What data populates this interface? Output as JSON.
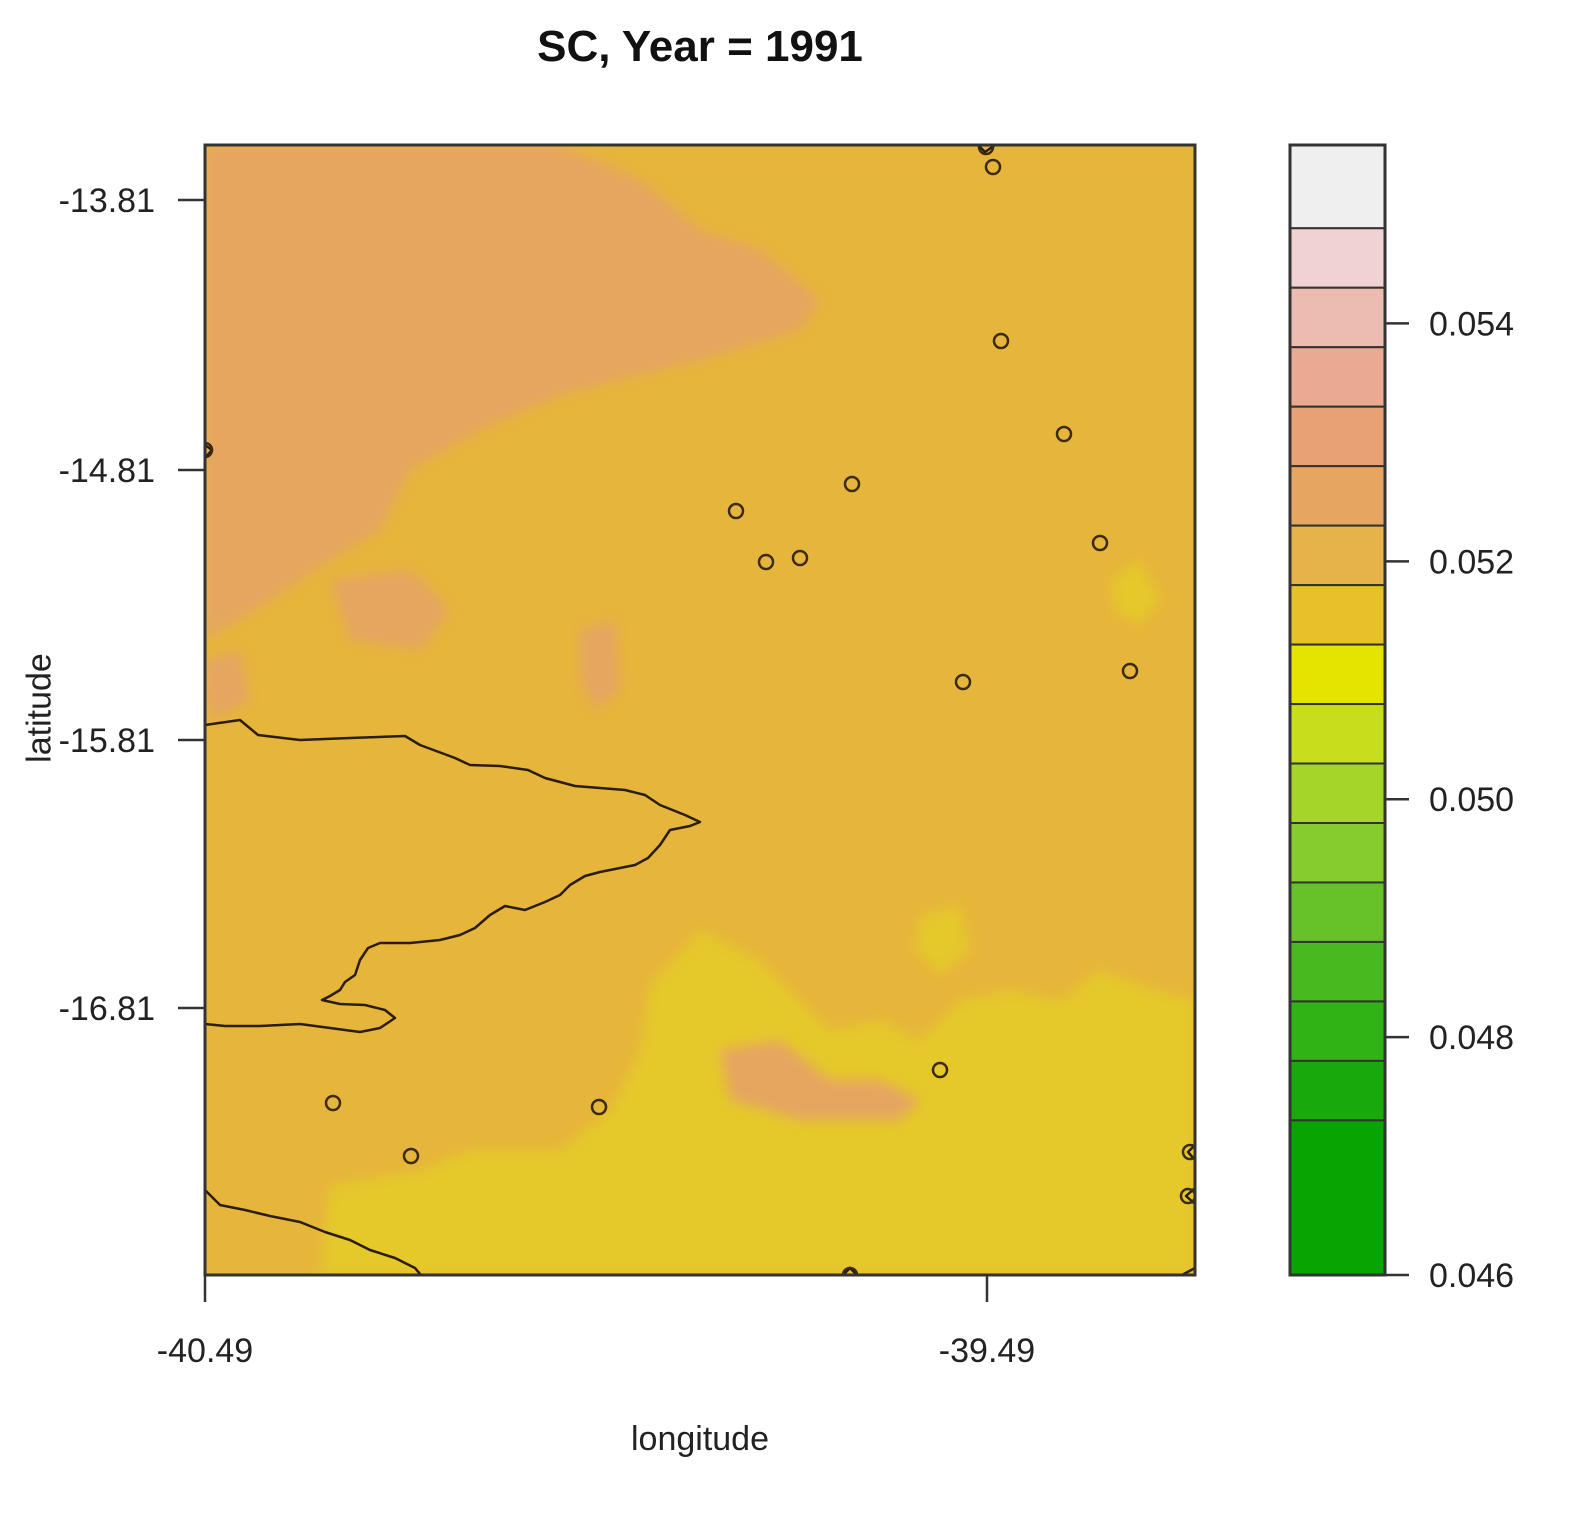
{
  "map": {
    "title": "SC, Year = 1991",
    "xlabel": "longitude",
    "ylabel": "latitude",
    "x_ticks": [
      "-40.49",
      "-39.49"
    ],
    "y_ticks": [
      "-13.81",
      "-14.81",
      "-15.81",
      "-16.81"
    ],
    "colorbar": {
      "range": [
        0.046,
        0.0555
      ],
      "tick_labels": [
        "0.054",
        "0.052",
        "0.050",
        "0.048",
        "0.046"
      ],
      "colors_top_to_bottom": [
        "#efefef",
        "#f0d2d2",
        "#ecbcb3",
        "#eaaa92",
        "#e8a075",
        "#e6a560",
        "#e5b34a",
        "#e6c12a",
        "#e5e300",
        "#c6de1b",
        "#a6d52a",
        "#86cc2e",
        "#66c228",
        "#48ba1f",
        "#2fb315",
        "#18aa0c",
        "#07a402"
      ]
    },
    "colors": {
      "background_field": "#e6b53b",
      "warm_patch": "#e6a661",
      "yellow_patch": "#e5c82c",
      "station_marker": "#3a2a10",
      "boundary_line": "#2a1d0d"
    }
  }
}
